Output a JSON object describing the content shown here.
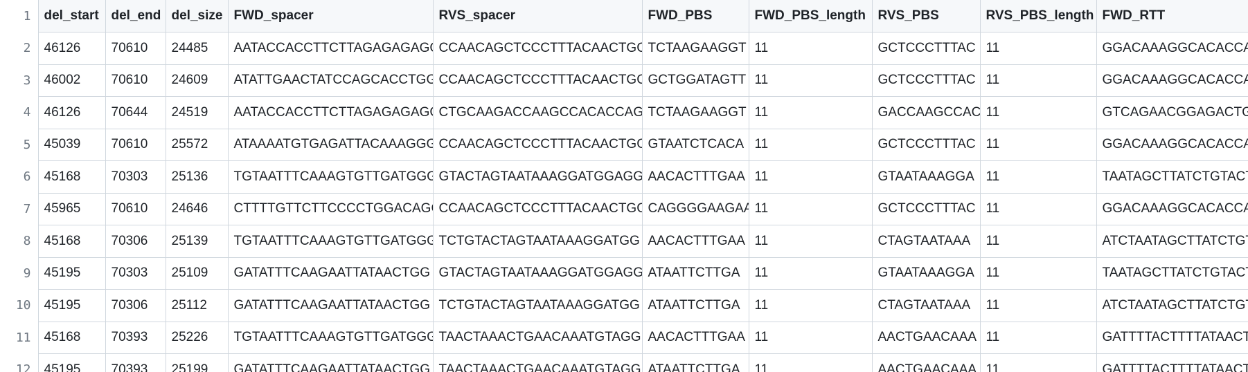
{
  "grid": {
    "headers": [
      "del_start",
      "del_end",
      "del_size",
      "FWD_spacer",
      "RVS_spacer",
      "FWD_PBS",
      "FWD_PBS_length",
      "RVS_PBS",
      "RVS_PBS_length",
      "FWD_RTT"
    ],
    "line_numbers": [
      "1",
      "2",
      "3",
      "4",
      "5",
      "6",
      "7",
      "8",
      "9",
      "10",
      "11",
      "12"
    ],
    "rows": [
      [
        "46126",
        "70610",
        "24485",
        "AATACCACCTTCTTAGAGAGAGG",
        "CCAACAGCTCCCTTTACAACTGG",
        "TCTAAGAAGGT",
        "11",
        "GCTCCCTTTAC",
        "11",
        "GGACAAAGGCACACCAAC"
      ],
      [
        "46002",
        "70610",
        "24609",
        "ATATTGAACTATCCAGCACCTGG",
        "CCAACAGCTCCCTTTACAACTGG",
        "GCTGGATAGTT",
        "11",
        "GCTCCCTTTAC",
        "11",
        "GGACAAAGGCACACCAAC"
      ],
      [
        "46126",
        "70644",
        "24519",
        "AATACCACCTTCTTAGAGAGAGG",
        "CTGCAAGACCAAGCCACACCAGG",
        "TCTAAGAAGGT",
        "11",
        "GACCAAGCCAC",
        "11",
        "GTCAGAACGGAGACTGCA"
      ],
      [
        "45039",
        "70610",
        "25572",
        "ATAAAATGTGAGATTACAAAGGG",
        "CCAACAGCTCCCTTTACAACTGG",
        "GTAATCTCACA",
        "11",
        "GCTCCCTTTAC",
        "11",
        "GGACAAAGGCACACCAAC"
      ],
      [
        "45168",
        "70303",
        "25136",
        "TGTAATTTCAAAGTGTTGATGGG",
        "GTACTAGTAATAAAGGATGGAGG",
        "AACACTTTGAA",
        "11",
        "GTAATAAAGGA",
        "11",
        "TAATAGCTTATCTGTACTAC"
      ],
      [
        "45965",
        "70610",
        "24646",
        "CTTTTGTTCTTCCCCTGGACAGG",
        "CCAACAGCTCCCTTTACAACTGG",
        "CAGGGGAAGAA",
        "11",
        "GCTCCCTTTAC",
        "11",
        "GGACAAAGGCACACCAAC"
      ],
      [
        "45168",
        "70306",
        "25139",
        "TGTAATTTCAAAGTGTTGATGGG",
        "TCTGTACTAGTAATAAAGGATGG",
        "AACACTTTGAA",
        "11",
        "CTAGTAATAAA",
        "11",
        "ATCTAATAGCTTATCTGTAC"
      ],
      [
        "45195",
        "70303",
        "25109",
        "GATATTTCAAGAATTATAACTGG",
        "GTACTAGTAATAAAGGATGGAGG",
        "ATAATTCTTGA",
        "11",
        "GTAATAAAGGA",
        "11",
        "TAATAGCTTATCTGTACTAC"
      ],
      [
        "45195",
        "70306",
        "25112",
        "GATATTTCAAGAATTATAACTGG",
        "TCTGTACTAGTAATAAAGGATGG",
        "ATAATTCTTGA",
        "11",
        "CTAGTAATAAA",
        "11",
        "ATCTAATAGCTTATCTGTAC"
      ],
      [
        "45168",
        "70393",
        "25226",
        "TGTAATTTCAAAGTGTTGATGGG",
        "TAACTAAACTGAACAAATGTAGG",
        "AACACTTTGAA",
        "11",
        "AACTGAACAAA",
        "11",
        "GATTTTACTTTTATAACTAA"
      ],
      [
        "45195",
        "70393",
        "25199",
        "GATATTTCAAGAATTATAACTGG",
        "TAACTAAACTGAACAAATGTAGG",
        "ATAATTCTTGA",
        "11",
        "AACTGAACAAA",
        "11",
        "GATTTTACTTTTATAACTAA"
      ]
    ]
  }
}
